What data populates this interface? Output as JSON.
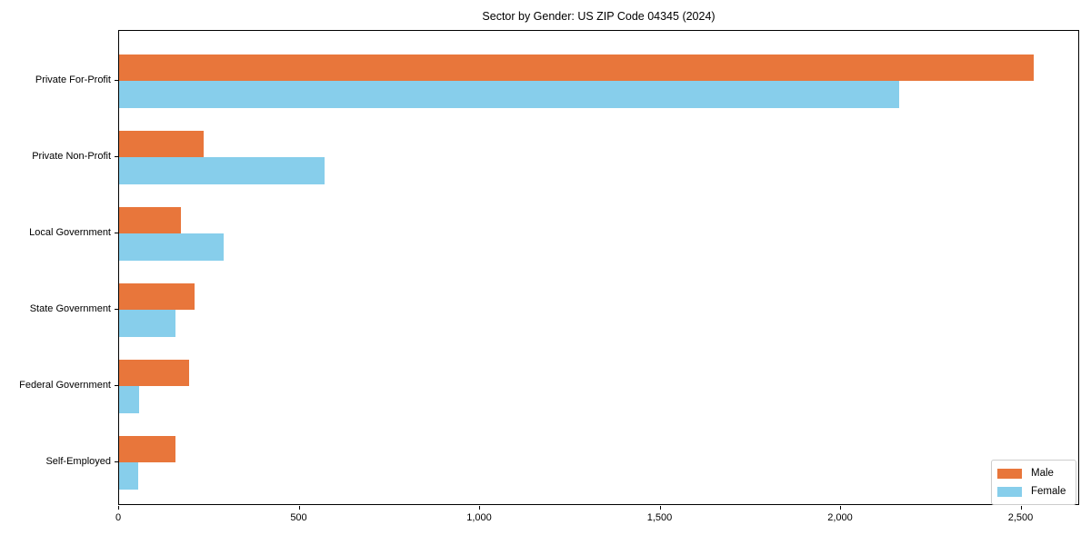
{
  "chart_data": {
    "type": "bar",
    "orientation": "horizontal",
    "title": "Sector by Gender: US ZIP Code 04345 (2024)",
    "categories": [
      "Private For-Profit",
      "Private Non-Profit",
      "Local Government",
      "State Government",
      "Federal Government",
      "Self-Employed"
    ],
    "series": [
      {
        "name": "Male",
        "color": "#E8763B",
        "values": [
          2535,
          235,
          170,
          210,
          195,
          155
        ]
      },
      {
        "name": "Female",
        "color": "#87CEEB",
        "values": [
          2160,
          570,
          290,
          155,
          55,
          52
        ]
      }
    ],
    "xlabel": "",
    "ylabel": "",
    "xlim": [
      0,
      2660
    ],
    "x_ticks": [
      0,
      500,
      1000,
      1500,
      2000,
      2500
    ],
    "x_tick_labels": [
      "0",
      "500",
      "1,000",
      "1,500",
      "2,000",
      "2,500"
    ],
    "grid": false,
    "legend": {
      "position": "lower right",
      "entries": [
        "Male",
        "Female"
      ]
    },
    "bar_height_fraction": 0.35,
    "colors": {
      "male": "#E8763B",
      "female": "#87CEEB",
      "spine": "#000000",
      "legend_border": "#cccccc",
      "background": "#ffffff"
    }
  }
}
